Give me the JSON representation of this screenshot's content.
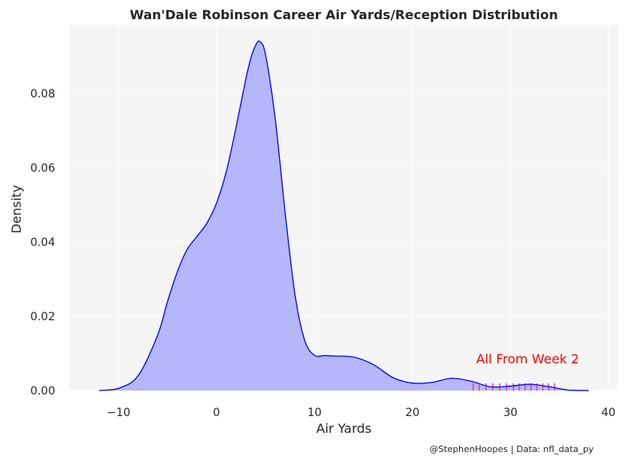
{
  "chart_data": {
    "type": "area",
    "title": "Wan'Dale Robinson Career Air Yards/Reception Distribution",
    "xlabel": "Air Yards",
    "ylabel": "Density",
    "xlim": [
      -15,
      41
    ],
    "ylim": [
      0,
      0.0985
    ],
    "xticks": [
      -10,
      0,
      10,
      20,
      30,
      40
    ],
    "yticks": [
      0.0,
      0.02,
      0.04,
      0.06,
      0.08
    ],
    "xtick_labels": [
      "−10",
      "0",
      "10",
      "20",
      "30",
      "40"
    ],
    "ytick_labels": [
      "0.00",
      "0.02",
      "0.04",
      "0.06",
      "0.08"
    ],
    "grid": true,
    "series": [
      {
        "x": [
          -12.0,
          -10.0,
          -8.0,
          -6.0,
          -5.0,
          -4.0,
          -3.0,
          -2.0,
          -1.0,
          0.0,
          1.0,
          2.0,
          3.0,
          3.5,
          4.0,
          4.4,
          5.0,
          6.0,
          7.0,
          8.0,
          9.0,
          10.0,
          11.0,
          12.0,
          14.0,
          16.0,
          18.0,
          20.0,
          22.0,
          24.0,
          26.0,
          28.0,
          30.0,
          32.0,
          34.0,
          36.0,
          38.0
        ],
        "y": [
          0.0,
          0.0006,
          0.004,
          0.015,
          0.024,
          0.032,
          0.038,
          0.0415,
          0.045,
          0.0505,
          0.059,
          0.071,
          0.084,
          0.0895,
          0.093,
          0.094,
          0.0905,
          0.073,
          0.048,
          0.026,
          0.0135,
          0.0095,
          0.0094,
          0.0093,
          0.009,
          0.007,
          0.0035,
          0.002,
          0.0022,
          0.0033,
          0.0025,
          0.001,
          0.0012,
          0.0017,
          0.001,
          0.0001,
          0.0
        ]
      }
    ],
    "rug": {
      "color": "#e8366f",
      "x": [
        26.2,
        26.8,
        27.5,
        28.2,
        28.9,
        29.6,
        30.3,
        30.9,
        31.5,
        32.1,
        32.7,
        33.3,
        33.9,
        34.5
      ]
    },
    "annotation": {
      "text": "All From Week 2",
      "x": 26.5,
      "y": 0.0073,
      "color": "#ff0000"
    },
    "credit": "@StephenHoopes | Data: nfl_data_py",
    "colors": {
      "line": "#0000ff",
      "fill": "#b6b6fb",
      "background": "#f5f5f5",
      "grid": "#ffffff"
    }
  }
}
